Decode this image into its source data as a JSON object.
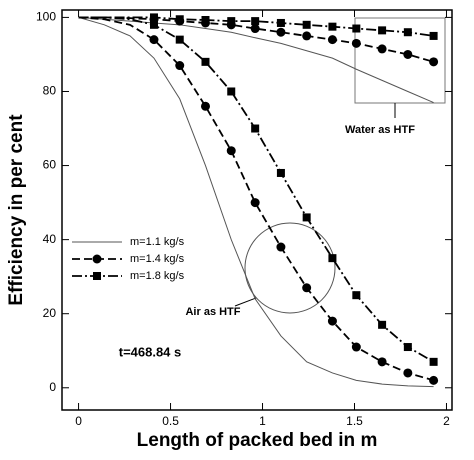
{
  "chart_data": {
    "type": "line",
    "x_label": "Length of packed bed in m",
    "y_label": "Efficiency in per cent",
    "x": [
      0,
      0.14,
      0.28,
      0.41,
      0.55,
      0.69,
      0.83,
      0.96,
      1.1,
      1.24,
      1.38,
      1.51,
      1.65,
      1.79,
      1.93
    ],
    "series": [
      {
        "name": "m=1.1 kg/s",
        "color": "#555555",
        "dash": "none",
        "marker": "none",
        "values": [
          100,
          98,
          95,
          89,
          78,
          60,
          40,
          24,
          14,
          7,
          4,
          2,
          1,
          0.5,
          0.3
        ],
        "water_values": [
          100,
          99.5,
          99,
          98.5,
          98,
          97,
          96,
          94.5,
          93,
          91,
          89,
          86,
          83,
          80,
          77
        ]
      },
      {
        "name": "m=1.4 kg/s",
        "color": "#000000",
        "dash": "8,4",
        "marker": "circle",
        "values": [
          100,
          99.5,
          98,
          94,
          87,
          76,
          64,
          50,
          38,
          27,
          18,
          11,
          7,
          4,
          2
        ],
        "water_values": [
          100,
          100,
          99.8,
          99.5,
          99,
          98.5,
          98,
          97,
          96,
          95,
          94,
          93,
          91.5,
          90,
          88
        ]
      },
      {
        "name": "m=1.8 kg/s",
        "color": "#000000",
        "dash": "10,3,2,3",
        "marker": "square",
        "values": [
          100,
          100,
          99.5,
          98,
          94,
          88,
          80,
          70,
          58,
          46,
          35,
          25,
          17,
          11,
          7
        ],
        "water_values": [
          100,
          100,
          100,
          100,
          99.5,
          99.3,
          99,
          99,
          98.5,
          98,
          97.5,
          97,
          96.5,
          96,
          95
        ]
      }
    ],
    "xlim": [
      -0.09,
      2.03
    ],
    "ylim": [
      -6,
      102
    ],
    "xticks": [
      0,
      0.5,
      1,
      1.5,
      2
    ],
    "yticks": [
      0,
      20,
      40,
      60,
      80,
      100
    ],
    "annotations": {
      "water": "Water as HTF",
      "air": "Air as HTF",
      "time": "t=468.84 s"
    }
  }
}
